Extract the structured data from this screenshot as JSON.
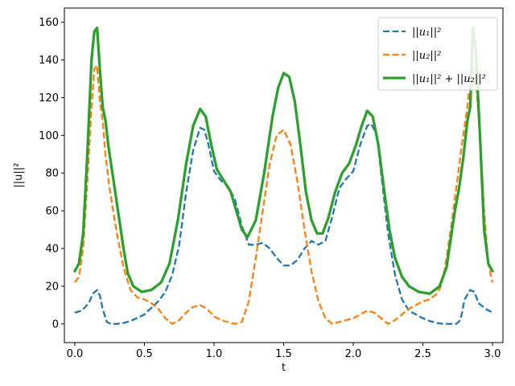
{
  "chart_data": {
    "type": "line",
    "title": "",
    "xlabel": "t",
    "ylabel": "||u||²",
    "xlim": [
      -0.075,
      3.075
    ],
    "ylim": [
      -9.9,
      167.5
    ],
    "grid": false,
    "legend_placement": "top-right",
    "x_ticks": [
      {
        "value": 0.0,
        "label": "0.0"
      },
      {
        "value": 0.5,
        "label": "0.5"
      },
      {
        "value": 1.0,
        "label": "1.0"
      },
      {
        "value": 1.5,
        "label": "1.5"
      },
      {
        "value": 2.0,
        "label": "2.0"
      },
      {
        "value": 2.5,
        "label": "2.5"
      },
      {
        "value": 3.0,
        "label": "3.0"
      }
    ],
    "y_ticks": [
      {
        "value": 0,
        "label": "0"
      },
      {
        "value": 20,
        "label": "20"
      },
      {
        "value": 40,
        "label": "40"
      },
      {
        "value": 60,
        "label": "60"
      },
      {
        "value": 80,
        "label": "80"
      },
      {
        "value": 100,
        "label": "100"
      },
      {
        "value": 120,
        "label": "120"
      },
      {
        "value": 140,
        "label": "140"
      },
      {
        "value": 160,
        "label": "160"
      }
    ],
    "series": [
      {
        "name": "||u₁||²",
        "color": "#1f77b4",
        "style": "dashed",
        "x": [
          0.0,
          0.05,
          0.1,
          0.13,
          0.16,
          0.18,
          0.2,
          0.23,
          0.26,
          0.3,
          0.35,
          0.4,
          0.5,
          0.6,
          0.65,
          0.7,
          0.75,
          0.8,
          0.85,
          0.9,
          0.93,
          0.96,
          1.0,
          1.05,
          1.1,
          1.15,
          1.2,
          1.25,
          1.3,
          1.35,
          1.4,
          1.45,
          1.5,
          1.55,
          1.6,
          1.65,
          1.7,
          1.75,
          1.8,
          1.85,
          1.9,
          1.95,
          2.0,
          2.05,
          2.1,
          2.13,
          2.17,
          2.2,
          2.25,
          2.3,
          2.35,
          2.4,
          2.5,
          2.55,
          2.6,
          2.65,
          2.7,
          2.74,
          2.77,
          2.8,
          2.84,
          2.87,
          2.9,
          2.95,
          3.0
        ],
        "values": [
          6,
          7,
          11,
          16,
          18,
          15,
          8,
          1,
          0,
          0,
          0.5,
          1.5,
          5,
          12,
          17,
          26,
          42,
          70,
          92,
          104,
          103,
          95,
          81,
          76,
          73,
          66,
          52,
          42,
          42,
          43,
          40,
          35,
          31,
          31,
          34,
          40,
          44,
          42,
          44,
          57,
          72,
          77,
          81,
          95,
          105,
          106,
          100,
          80,
          48,
          26,
          13,
          7,
          3,
          1.5,
          0.5,
          0,
          0,
          0,
          2,
          13,
          18,
          17,
          11,
          8,
          6
        ]
      },
      {
        "name": "||u₂||²",
        "color": "#ff7f0e",
        "style": "dashed",
        "x": [
          0.0,
          0.03,
          0.06,
          0.09,
          0.12,
          0.14,
          0.16,
          0.18,
          0.2,
          0.22,
          0.25,
          0.28,
          0.31,
          0.35,
          0.4,
          0.45,
          0.5,
          0.55,
          0.6,
          0.65,
          0.7,
          0.75,
          0.8,
          0.85,
          0.9,
          0.95,
          1.0,
          1.05,
          1.1,
          1.15,
          1.2,
          1.25,
          1.3,
          1.35,
          1.4,
          1.45,
          1.5,
          1.55,
          1.6,
          1.65,
          1.7,
          1.75,
          1.8,
          1.85,
          1.9,
          1.95,
          2.0,
          2.05,
          2.1,
          2.15,
          2.2,
          2.25,
          2.3,
          2.35,
          2.4,
          2.45,
          2.5,
          2.55,
          2.6,
          2.63,
          2.66,
          2.7,
          2.74,
          2.78,
          2.82,
          2.84,
          2.86,
          2.88,
          2.91,
          2.94,
          2.97,
          3.0
        ],
        "values": [
          22,
          25,
          40,
          75,
          115,
          135,
          137,
          118,
          108,
          90,
          72,
          58,
          45,
          30,
          18,
          14,
          13,
          11,
          8,
          3,
          0,
          2,
          6,
          9,
          10,
          8,
          4,
          2,
          1,
          0,
          1,
          12,
          35,
          60,
          85,
          100,
          103,
          95,
          75,
          50,
          28,
          12,
          3,
          0,
          1,
          2,
          3,
          5,
          7,
          6,
          3,
          0,
          2,
          5,
          8,
          10,
          12,
          13,
          16,
          20,
          30,
          50,
          72,
          95,
          115,
          130,
          137,
          130,
          100,
          60,
          32,
          22
        ]
      },
      {
        "name": "||u₁||² + ||u₂||²",
        "color": "#2ca02c",
        "style": "solid",
        "x": [
          0.0,
          0.03,
          0.06,
          0.09,
          0.12,
          0.14,
          0.16,
          0.18,
          0.2,
          0.22,
          0.24,
          0.26,
          0.28,
          0.3,
          0.32,
          0.35,
          0.38,
          0.42,
          0.48,
          0.55,
          0.62,
          0.68,
          0.74,
          0.8,
          0.85,
          0.9,
          0.94,
          0.98,
          1.02,
          1.07,
          1.12,
          1.16,
          1.2,
          1.24,
          1.3,
          1.36,
          1.42,
          1.46,
          1.5,
          1.54,
          1.58,
          1.62,
          1.66,
          1.7,
          1.74,
          1.78,
          1.82,
          1.87,
          1.92,
          1.97,
          2.02,
          2.06,
          2.1,
          2.14,
          2.18,
          2.22,
          2.26,
          2.3,
          2.35,
          2.4,
          2.47,
          2.55,
          2.62,
          2.67,
          2.7,
          2.73,
          2.76,
          2.79,
          2.82,
          2.84,
          2.86,
          2.88,
          2.91,
          2.94,
          2.97,
          3.0
        ],
        "values": [
          28,
          32,
          48,
          90,
          140,
          155,
          157,
          135,
          115,
          108,
          95,
          85,
          75,
          65,
          55,
          40,
          27,
          20,
          17,
          18,
          22,
          32,
          55,
          85,
          105,
          114,
          110,
          95,
          82,
          76,
          70,
          60,
          50,
          46,
          55,
          80,
          110,
          125,
          133,
          131,
          118,
          95,
          70,
          55,
          48,
          48,
          56,
          70,
          80,
          85,
          95,
          105,
          113,
          110,
          95,
          72,
          50,
          35,
          25,
          20,
          17,
          16,
          20,
          30,
          45,
          60,
          72,
          88,
          108,
          115,
          157,
          145,
          100,
          50,
          32,
          28
        ]
      }
    ]
  }
}
